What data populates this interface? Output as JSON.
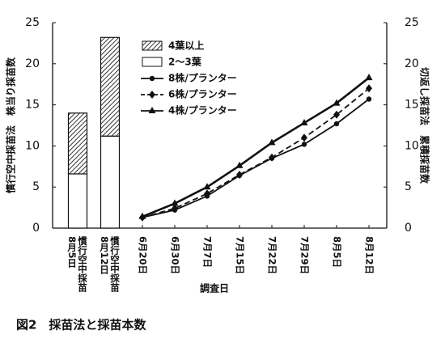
{
  "caption": "図2　採苗法と採苗本数",
  "chart_data": [
    {
      "type": "bar",
      "stacked": true,
      "ylabel": "慣行空中採苗法　株当り採苗数",
      "categories": [
        [
          "慣行空中採苗",
          "8月5日"
        ],
        [
          "慣行空中採苗",
          "8月12日"
        ]
      ],
      "series": [
        {
          "name": "4葉以上",
          "pattern": "hatch",
          "values": [
            7.4,
            12.0
          ]
        },
        {
          "name": "2～3葉",
          "color": "#ffffff",
          "values": [
            6.6,
            11.2
          ]
        }
      ],
      "ylim": [
        0,
        25
      ],
      "yticks": [
        0,
        5,
        10,
        15,
        20,
        25
      ]
    },
    {
      "type": "line",
      "xlabel": "調査日",
      "y2label": "切返し採苗法　累積採苗数",
      "categories": [
        "6月20日",
        "6月30日",
        "7月7日",
        "7月15日",
        "7月22日",
        "7月29日",
        "8月5日",
        "8月12日"
      ],
      "series": [
        {
          "name": "8株/プランター",
          "marker": "circle",
          "dash": "solid",
          "color": "#111111",
          "axis": "y2",
          "values": [
            1.3,
            2.2,
            3.9,
            6.4,
            8.5,
            10.2,
            12.7,
            15.7
          ]
        },
        {
          "name": "6株/プランター",
          "marker": "diamond",
          "dash": "dashed",
          "color": "#111111",
          "axis": "y2",
          "values": [
            1.3,
            2.4,
            4.2,
            6.5,
            8.6,
            11.0,
            13.8,
            17.0
          ]
        },
        {
          "name": "4株/プランター",
          "marker": "triangle",
          "dash": "solid",
          "color": "#111111",
          "axis": "y2",
          "values": [
            1.4,
            3.0,
            5.0,
            7.6,
            10.4,
            12.8,
            15.2,
            18.3
          ]
        }
      ],
      "y2lim": [
        0,
        25
      ],
      "y2ticks": [
        0,
        5,
        10,
        15,
        20,
        25
      ]
    }
  ]
}
